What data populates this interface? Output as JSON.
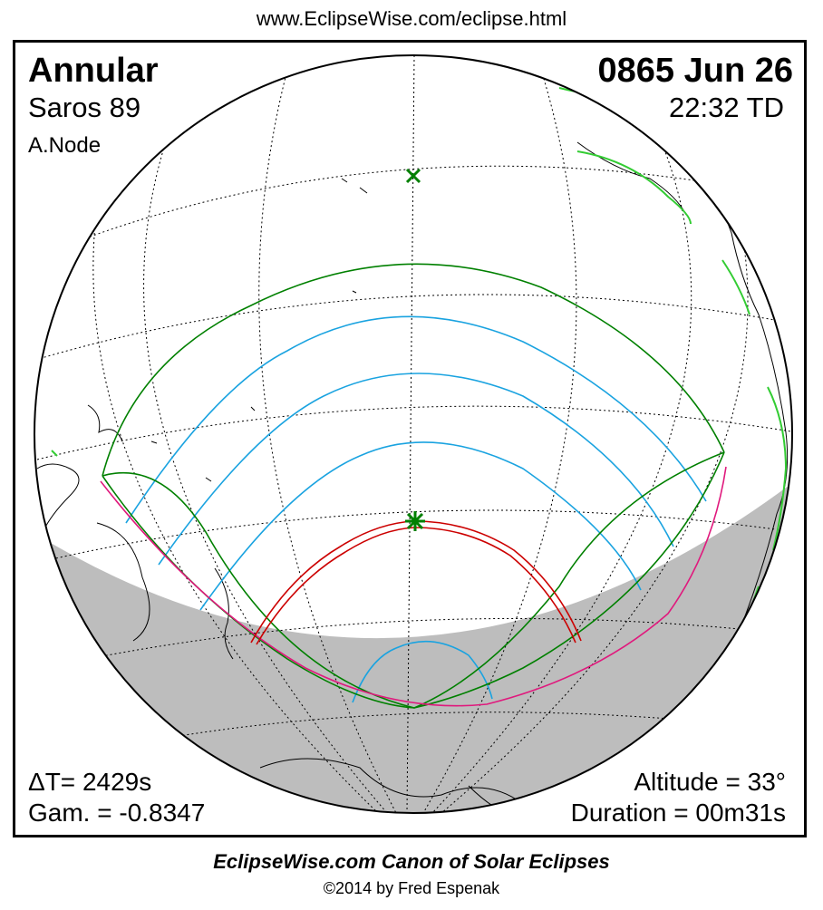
{
  "header": {
    "url": "www.EclipseWise.com/eclipse.html"
  },
  "eclipse": {
    "type": "Annular",
    "saros": "Saros  89",
    "node": "A.Node",
    "date": "0865 Jun 26",
    "time": "22:32 TD",
    "delta_t": "ΔT=   2429s",
    "gamma": "Gam. = -0.8347",
    "altitude": "Altitude = 33°",
    "duration": "Duration = 00m31s"
  },
  "footer": {
    "canon": "EclipseWise.com Canon of Solar Eclipses",
    "copyright": "©2014 by Fred Espenak"
  },
  "colors": {
    "night": "#bdbdbd",
    "penumbra_limit": "#008000",
    "central_path": "#cc0000",
    "magnitude_contours": "#1aa3e0",
    "rise_set": "#e0197d",
    "coastline_highlight": "#33cc33",
    "graticule": "#000000"
  },
  "markers": {
    "sun_subsolar": "x-mark-icon",
    "greatest_eclipse": "star-icon"
  }
}
